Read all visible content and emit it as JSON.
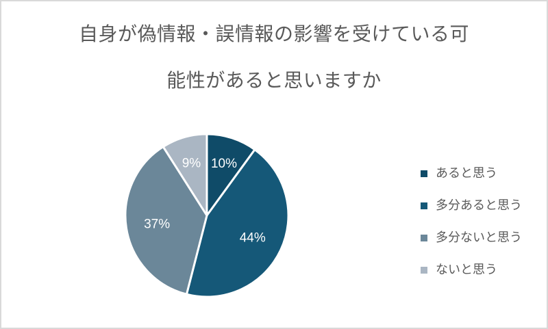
{
  "chart_data": {
    "type": "pie",
    "title": "自身が偽情報・誤情報の影響を受けている可能性があると思いますか",
    "title_lines": [
      "自身が偽情報・誤情報の影響を受けている可",
      "能性があると思いますか"
    ],
    "categories": [
      "あると思う",
      "多分あると思う",
      "多分ないと思う",
      "ないと思う"
    ],
    "values": [
      10,
      44,
      37,
      9
    ],
    "labels": [
      "10%",
      "44%",
      "37%",
      "9%"
    ],
    "colors": [
      "#0f4b68",
      "#155878",
      "#6b8799",
      "#aab6c3"
    ],
    "legend_position": "right",
    "start_angle": "12 o'clock, clockwise"
  },
  "legend": {
    "items": [
      {
        "label": "あると思う",
        "color": "#0f4b68"
      },
      {
        "label": "多分あると思う",
        "color": "#155878"
      },
      {
        "label": "多分ないと思う",
        "color": "#6b8799"
      },
      {
        "label": "ないと思う",
        "color": "#aab6c3"
      }
    ]
  }
}
